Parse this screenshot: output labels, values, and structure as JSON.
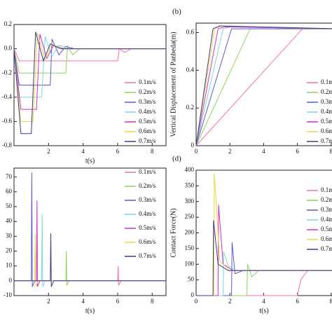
{
  "chart_data": [
    {
      "type": "line",
      "xlabel": "t(s)",
      "xlim": [
        0,
        8.8
      ],
      "ylim": [
        -0.8,
        0.2
      ],
      "xticks": [
        2,
        4,
        6,
        8
      ],
      "yticks": [
        0.2,
        {
          "value": 0,
          "label": "0.0"
        },
        -0.2,
        -0.4,
        -0.6,
        -0.8
      ],
      "series": [
        {
          "name": "0.1m/s",
          "color": "#f070b0",
          "x": [
            0,
            0.3,
            6.0,
            6.1,
            6.4,
            6.8,
            8.8
          ],
          "values": [
            0,
            -0.1,
            -0.1,
            0.0,
            -0.03,
            0,
            0
          ]
        },
        {
          "name": "0.2m/s",
          "color": "#8fd35a",
          "x": [
            0,
            0.3,
            3.0,
            3.1,
            3.4,
            3.8,
            8.8
          ],
          "values": [
            0,
            -0.2,
            -0.2,
            0.02,
            -0.05,
            0,
            0
          ]
        },
        {
          "name": "0.3m/s",
          "color": "#5a5ad6",
          "x": [
            0,
            0.3,
            2.1,
            2.2,
            2.6,
            3.0,
            3.5,
            8.8
          ],
          "values": [
            0,
            -0.3,
            -0.3,
            0.08,
            -0.05,
            0.02,
            0,
            0
          ]
        },
        {
          "name": "0.4m/s",
          "color": "#7fd6e0",
          "x": [
            0,
            0.3,
            1.6,
            1.8,
            2.2,
            2.6,
            3.2,
            8.8
          ],
          "values": [
            0,
            -0.4,
            -0.4,
            0.1,
            -0.06,
            0.03,
            0,
            0
          ]
        },
        {
          "name": "0.5m/s",
          "color": "#d02fd0",
          "x": [
            0,
            0.4,
            1.3,
            1.5,
            1.9,
            2.3,
            2.9,
            8.8
          ],
          "values": [
            0,
            -0.5,
            -0.5,
            0.12,
            -0.08,
            0.03,
            0,
            0
          ]
        },
        {
          "name": "0.6m/s",
          "color": "#e8d83a",
          "x": [
            0,
            0.4,
            1.1,
            1.35,
            1.8,
            2.2,
            2.8,
            8.8
          ],
          "values": [
            0,
            -0.6,
            -0.6,
            0.13,
            -0.09,
            0.04,
            0,
            0
          ]
        },
        {
          "name": "0.7m/s",
          "color": "#3a3a8a",
          "x": [
            0,
            0.4,
            1.0,
            1.25,
            1.7,
            2.1,
            2.7,
            8.8
          ],
          "values": [
            0,
            -0.7,
            -0.7,
            0.14,
            -0.1,
            0.04,
            0,
            0
          ]
        }
      ]
    },
    {
      "type": "line",
      "panel_label": "(b)",
      "ylabel": "Vertical Displacement of Panbeda(m)",
      "xlim": [
        0,
        8.3
      ],
      "ylim": [
        0,
        0.65
      ],
      "xticks": [
        0,
        2,
        4,
        6,
        8
      ],
      "yticks": [
        0,
        0.2,
        0.4,
        0.6
      ],
      "series": [
        {
          "name": "0.1m/s",
          "color": "#f070b0",
          "x": [
            0,
            6.3,
            8.3
          ],
          "values": [
            0,
            0.62,
            0.62
          ]
        },
        {
          "name": "0.2m/s",
          "color": "#8fd35a",
          "x": [
            0,
            3.2,
            8.3
          ],
          "values": [
            0,
            0.62,
            0.62
          ]
        },
        {
          "name": "0.3m/s",
          "color": "#5a5ad6",
          "x": [
            0,
            2.1,
            8.3
          ],
          "values": [
            0,
            0.62,
            0.62
          ]
        },
        {
          "name": "0.4m/s",
          "color": "#7fd6e0",
          "x": [
            0,
            1.6,
            2.0,
            8.3
          ],
          "values": [
            0,
            0.62,
            0.63,
            0.62
          ]
        },
        {
          "name": "0.5m/s",
          "color": "#d02fd0",
          "x": [
            0,
            1.3,
            1.7,
            8.3
          ],
          "values": [
            0,
            0.62,
            0.63,
            0.62
          ]
        },
        {
          "name": "0.6m/s",
          "color": "#e8d83a",
          "x": [
            0,
            1.1,
            1.5,
            8.3
          ],
          "values": [
            0,
            0.62,
            0.635,
            0.62
          ]
        },
        {
          "name": "0.7m/s",
          "color": "#3a3a8a",
          "x": [
            0,
            1.0,
            1.4,
            8.3
          ],
          "values": [
            0,
            0.62,
            0.635,
            0.62
          ]
        }
      ]
    },
    {
      "type": "line",
      "xlabel": "t(s)",
      "xlim": [
        0,
        8.8
      ],
      "ylim": [
        -10,
        76
      ],
      "xticks": [
        2,
        4,
        6,
        8
      ],
      "yticks": [
        -10,
        0,
        10,
        20,
        30,
        40,
        50,
        60,
        70
      ],
      "series": [
        {
          "name": "0.1m/s",
          "color": "#f070b0",
          "x": [
            0,
            6.0,
            6.03,
            6.06,
            6.2,
            8.8
          ],
          "values": [
            0,
            0,
            10,
            -3,
            0,
            0
          ]
        },
        {
          "name": "0.2m/s",
          "color": "#8fd35a",
          "x": [
            0,
            3.0,
            3.03,
            3.06,
            3.2,
            8.8
          ],
          "values": [
            0,
            0,
            20,
            -3,
            0,
            0
          ]
        },
        {
          "name": "0.3m/s",
          "color": "#5a5ad6",
          "x": [
            0,
            1.0,
            1.03,
            1.06,
            1.2,
            8.8
          ],
          "values": [
            0,
            0,
            73,
            -4,
            0,
            0
          ]
        },
        {
          "name": "0.4m/s",
          "color": "#7fd6e0",
          "x": [
            0,
            1.6,
            1.63,
            1.66,
            1.8,
            8.8
          ],
          "values": [
            0,
            0,
            45,
            -4,
            0,
            0
          ]
        },
        {
          "name": "0.5m/s",
          "color": "#d02fd0",
          "x": [
            0,
            1.3,
            1.33,
            1.36,
            1.5,
            8.8
          ],
          "values": [
            0,
            0,
            54,
            -4,
            0,
            0
          ]
        },
        {
          "name": "0.6m/s",
          "color": "#e8d83a",
          "x": [
            0,
            1.2,
            1.23,
            1.26,
            1.4,
            8.8
          ],
          "values": [
            0,
            0,
            32,
            -4,
            0,
            0
          ]
        },
        {
          "name": "0.7m/s",
          "color": "#3a3a8a",
          "x": [
            0,
            2.1,
            2.13,
            2.16,
            2.3,
            8.8
          ],
          "values": [
            0,
            0,
            32,
            -4,
            0,
            0
          ]
        }
      ]
    },
    {
      "type": "line",
      "panel_label": "(d)",
      "xlabel": "t(s)",
      "ylabel": "Contact Force(N)",
      "xlim": [
        0,
        8.3
      ],
      "ylim": [
        0,
        400
      ],
      "xticks": [
        0,
        2,
        4,
        6,
        8
      ],
      "yticks": [
        0,
        50,
        100,
        150,
        200,
        250,
        300,
        350,
        400
      ],
      "series": [
        {
          "name": "0.1m/s",
          "color": "#f070b0",
          "x": [
            0,
            6.0,
            6.2,
            6.6,
            8.3
          ],
          "values": [
            0,
            0,
            50,
            80,
            80
          ]
        },
        {
          "name": "0.2m/s",
          "color": "#8fd35a",
          "x": [
            0,
            3.0,
            3.05,
            3.3,
            3.7,
            8.3
          ],
          "values": [
            0,
            0,
            100,
            60,
            80,
            80
          ]
        },
        {
          "name": "0.3m/s",
          "color": "#5a5ad6",
          "x": [
            0,
            2.1,
            2.13,
            2.3,
            2.8,
            8.3
          ],
          "values": [
            0,
            0,
            170,
            70,
            80,
            80
          ]
        },
        {
          "name": "0.4m/s",
          "color": "#7fd6e0",
          "x": [
            0,
            1.6,
            1.63,
            1.9,
            2.4,
            8.3
          ],
          "values": [
            0,
            0,
            140,
            95,
            80,
            80
          ]
        },
        {
          "name": "0.5m/s",
          "color": "#d02fd0",
          "x": [
            0,
            1.3,
            1.33,
            1.6,
            2.2,
            8.3
          ],
          "values": [
            0,
            0,
            290,
            100,
            80,
            80
          ]
        },
        {
          "name": "0.6m/s",
          "color": "#e8d83a",
          "x": [
            0,
            1.05,
            1.08,
            1.4,
            2.0,
            8.3
          ],
          "values": [
            0,
            0,
            390,
            110,
            80,
            80
          ]
        },
        {
          "name": "0.7m/s",
          "color": "#3a3a8a",
          "x": [
            0,
            1.0,
            1.03,
            1.3,
            1.9,
            8.3
          ],
          "values": [
            0,
            0,
            240,
            100,
            80,
            80
          ]
        }
      ]
    }
  ]
}
